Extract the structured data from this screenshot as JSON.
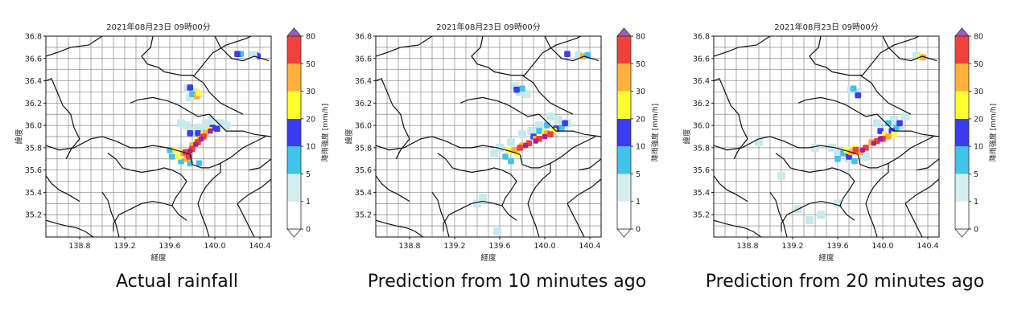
{
  "panels": [
    {
      "id": "actual",
      "title": "2021年08月23日 09時00分",
      "xlabel": "経度",
      "ylabel": "緯度",
      "caption": "Actual rainfall",
      "cells": [
        [
          139.8,
          35.95,
          "light"
        ],
        [
          139.85,
          35.98,
          "light"
        ],
        [
          139.9,
          35.98,
          "light"
        ],
        [
          139.92,
          36.02,
          "light"
        ],
        [
          139.97,
          36.05,
          "light"
        ],
        [
          140.05,
          36.02,
          "light"
        ],
        [
          139.75,
          36.0,
          "light"
        ],
        [
          139.7,
          36.02,
          "light"
        ],
        [
          140.1,
          36.0,
          "light"
        ],
        [
          139.78,
          35.93,
          "blue"
        ],
        [
          139.85,
          35.93,
          "blue"
        ],
        [
          139.92,
          35.93,
          "blue"
        ],
        [
          139.98,
          35.98,
          "blue"
        ],
        [
          140.02,
          35.97,
          "blue"
        ],
        [
          139.6,
          35.78,
          "cyan"
        ],
        [
          139.62,
          35.72,
          "cyan"
        ],
        [
          139.7,
          35.68,
          "cyan"
        ],
        [
          139.78,
          35.66,
          "cyan"
        ],
        [
          139.86,
          35.66,
          "cyan"
        ],
        [
          139.95,
          35.96,
          "yellow"
        ],
        [
          139.9,
          35.92,
          "yellow"
        ],
        [
          139.84,
          35.86,
          "yellow"
        ],
        [
          139.65,
          35.78,
          "yellow"
        ],
        [
          139.68,
          35.72,
          "yellow"
        ],
        [
          139.92,
          35.93,
          "orange"
        ],
        [
          139.87,
          35.88,
          "orange"
        ],
        [
          139.8,
          35.82,
          "orange"
        ],
        [
          139.72,
          35.75,
          "orange"
        ],
        [
          139.75,
          35.7,
          "orange"
        ],
        [
          139.9,
          35.9,
          "red"
        ],
        [
          139.85,
          35.85,
          "red"
        ],
        [
          139.8,
          35.79,
          "red"
        ],
        [
          139.74,
          35.76,
          "red"
        ],
        [
          139.77,
          35.72,
          "red"
        ],
        [
          139.88,
          35.88,
          "magenta"
        ],
        [
          139.83,
          35.83,
          "magenta"
        ],
        [
          139.78,
          35.77,
          "magenta"
        ],
        [
          139.96,
          35.95,
          "magenta"
        ],
        [
          139.76,
          36.33,
          "light"
        ],
        [
          139.82,
          36.3,
          "light"
        ],
        [
          139.78,
          36.25,
          "light"
        ],
        [
          139.85,
          36.28,
          "light"
        ],
        [
          139.8,
          36.28,
          "cyan"
        ],
        [
          139.78,
          36.34,
          "blue"
        ],
        [
          139.84,
          36.26,
          "orange"
        ],
        [
          139.86,
          36.29,
          "yellow"
        ],
        [
          140.38,
          36.62,
          "blue"
        ],
        [
          140.36,
          36.63,
          "blue"
        ],
        [
          140.23,
          36.64,
          "cyan"
        ],
        [
          140.2,
          36.64,
          "blue"
        ],
        [
          140.34,
          36.63,
          "light"
        ]
      ]
    },
    {
      "id": "pred10",
      "title": "2021年08月23日 09時00分",
      "xlabel": "経度",
      "ylabel": "緯度",
      "caption": "Prediction from 10 minutes ago",
      "cells": [
        [
          139.7,
          35.85,
          "light"
        ],
        [
          139.6,
          35.8,
          "light"
        ],
        [
          139.95,
          36.0,
          "light"
        ],
        [
          140.05,
          36.08,
          "light"
        ],
        [
          140.12,
          36.05,
          "light"
        ],
        [
          139.88,
          35.95,
          "light"
        ],
        [
          139.8,
          35.92,
          "light"
        ],
        [
          140.2,
          36.02,
          "light"
        ],
        [
          139.55,
          35.75,
          "light"
        ],
        [
          140.02,
          36.0,
          "cyan"
        ],
        [
          139.95,
          35.95,
          "cyan"
        ],
        [
          139.65,
          35.72,
          "cyan"
        ],
        [
          139.7,
          35.68,
          "cyan"
        ],
        [
          140.15,
          35.98,
          "cyan"
        ],
        [
          140.1,
          35.97,
          "blue"
        ],
        [
          139.9,
          35.9,
          "blue"
        ],
        [
          140.18,
          36.02,
          "blue"
        ],
        [
          139.68,
          35.78,
          "yellow"
        ],
        [
          139.75,
          35.75,
          "yellow"
        ],
        [
          140.08,
          35.95,
          "yellow"
        ],
        [
          140.0,
          35.94,
          "yellow"
        ],
        [
          139.73,
          35.78,
          "orange"
        ],
        [
          139.8,
          35.82,
          "orange"
        ],
        [
          139.92,
          35.88,
          "orange"
        ],
        [
          140.02,
          35.93,
          "orange"
        ],
        [
          139.78,
          35.8,
          "red"
        ],
        [
          139.86,
          35.84,
          "red"
        ],
        [
          139.95,
          35.88,
          "red"
        ],
        [
          140.05,
          35.92,
          "red"
        ],
        [
          139.83,
          35.82,
          "magenta"
        ],
        [
          139.92,
          35.86,
          "magenta"
        ],
        [
          140.0,
          35.9,
          "magenta"
        ],
        [
          139.78,
          36.3,
          "light"
        ],
        [
          139.84,
          36.28,
          "light"
        ],
        [
          139.74,
          36.35,
          "light"
        ],
        [
          139.8,
          36.33,
          "cyan"
        ],
        [
          139.75,
          36.32,
          "blue"
        ],
        [
          140.3,
          36.63,
          "light"
        ],
        [
          140.34,
          36.62,
          "orange"
        ],
        [
          140.38,
          36.63,
          "cyan"
        ],
        [
          140.2,
          36.64,
          "blue"
        ],
        [
          139.45,
          35.35,
          "light"
        ],
        [
          139.4,
          35.3,
          "light"
        ],
        [
          139.58,
          35.05,
          "light"
        ]
      ]
    },
    {
      "id": "pred20",
      "title": "2021年08月23日 09時00分",
      "xlabel": "経度",
      "ylabel": "緯度",
      "caption": "Prediction from 20 minutes ago",
      "cells": [
        [
          139.55,
          35.8,
          "light"
        ],
        [
          139.6,
          35.75,
          "light"
        ],
        [
          139.7,
          35.7,
          "light"
        ],
        [
          139.85,
          35.72,
          "light"
        ],
        [
          140.1,
          36.05,
          "light"
        ],
        [
          140.15,
          36.0,
          "light"
        ],
        [
          139.95,
          36.02,
          "light"
        ],
        [
          140.2,
          36.08,
          "light"
        ],
        [
          139.4,
          35.8,
          "light"
        ],
        [
          139.45,
          35.2,
          "light"
        ],
        [
          139.35,
          35.15,
          "light"
        ],
        [
          139.6,
          35.3,
          "light"
        ],
        [
          139.25,
          35.25,
          "light"
        ],
        [
          139.1,
          35.55,
          "light"
        ],
        [
          138.9,
          35.85,
          "light"
        ],
        [
          140.05,
          36.02,
          "cyan"
        ],
        [
          140.12,
          35.98,
          "cyan"
        ],
        [
          139.65,
          35.75,
          "cyan"
        ],
        [
          139.6,
          35.7,
          "cyan"
        ],
        [
          139.75,
          35.68,
          "cyan"
        ],
        [
          140.08,
          35.95,
          "blue"
        ],
        [
          140.15,
          36.02,
          "blue"
        ],
        [
          139.98,
          35.95,
          "blue"
        ],
        [
          139.7,
          35.72,
          "blue"
        ],
        [
          139.68,
          35.78,
          "yellow"
        ],
        [
          139.75,
          35.8,
          "yellow"
        ],
        [
          140.02,
          35.92,
          "yellow"
        ],
        [
          140.1,
          35.92,
          "yellow"
        ],
        [
          139.72,
          35.76,
          "orange"
        ],
        [
          139.8,
          35.76,
          "orange"
        ],
        [
          139.9,
          35.85,
          "orange"
        ],
        [
          140.05,
          35.9,
          "orange"
        ],
        [
          139.76,
          35.78,
          "red"
        ],
        [
          139.85,
          35.8,
          "red"
        ],
        [
          139.95,
          35.86,
          "red"
        ],
        [
          140.0,
          35.88,
          "red"
        ],
        [
          139.82,
          35.78,
          "magenta"
        ],
        [
          139.92,
          35.84,
          "magenta"
        ],
        [
          139.98,
          35.88,
          "magenta"
        ],
        [
          139.72,
          36.32,
          "light"
        ],
        [
          139.78,
          36.3,
          "light"
        ],
        [
          139.74,
          36.33,
          "cyan"
        ],
        [
          139.78,
          36.27,
          "blue"
        ],
        [
          140.3,
          36.62,
          "light"
        ],
        [
          140.34,
          36.62,
          "yellow"
        ],
        [
          140.36,
          36.61,
          "orange"
        ]
      ]
    }
  ],
  "map": {
    "xlim": [
      138.5,
      140.5
    ],
    "ylim": [
      35.0,
      36.8
    ],
    "xticks": [
      "138.8",
      "139.2",
      "139.6",
      "140.0",
      "140.4"
    ],
    "yticks": [
      "35.2",
      "35.4",
      "35.6",
      "35.8",
      "36.0",
      "36.2",
      "36.4",
      "36.6",
      "36.8"
    ],
    "grid_spacing_deg": 0.1,
    "grid": true,
    "boundary_color": "#111111",
    "gridline_color": "#888888"
  },
  "colorbar": {
    "label": "降雨強度 [mm/h]",
    "ticks": [
      "0",
      "1",
      "5",
      "10",
      "20",
      "30",
      "50",
      "80"
    ],
    "band_colors": [
      "#ffffff",
      "#d4eef0",
      "#40c4ec",
      "#3b3bf0",
      "#ffff2e",
      "#ffb13c",
      "#f0423c"
    ],
    "extend_low_color": "#ffffff",
    "extend_high_color": "#9e5cc2"
  },
  "intensity_colors": {
    "light": "#c7e9ec",
    "cyan": "#47c0ea",
    "blue": "#3a3ef0",
    "yellow": "#ffff38",
    "orange": "#ffae3a",
    "red": "#ee3f3a",
    "magenta": "#a8238e"
  }
}
